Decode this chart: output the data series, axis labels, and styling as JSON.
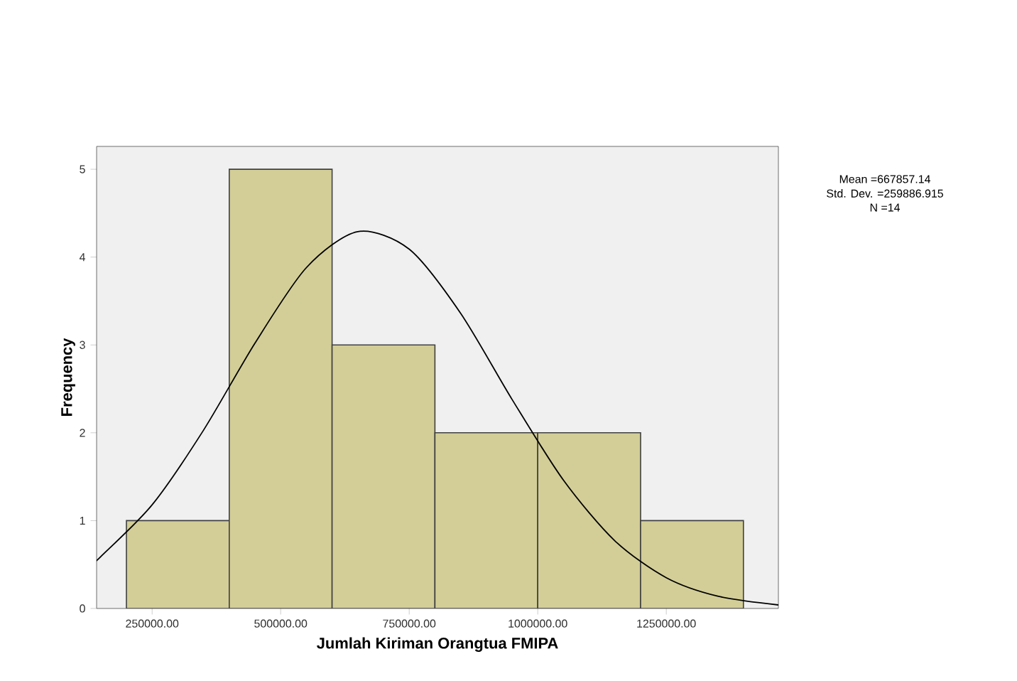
{
  "chart_data": {
    "type": "histogram",
    "xlabel": "Jumlah Kiriman Orangtua FMIPA",
    "ylabel": "Frequency",
    "bins": [
      200000,
      400000,
      600000,
      800000,
      1000000,
      1200000,
      1400000
    ],
    "values": [
      1,
      5,
      3,
      2,
      2,
      1
    ],
    "color": "#d3ce97",
    "series": [
      {
        "type": "line",
        "color": "#000000",
        "x": [
          142000,
          150000,
          250000,
          350000,
          450000,
          550000,
          650000,
          750000,
          850000,
          950000,
          1050000,
          1150000,
          1250000,
          1350000,
          1468000
        ],
        "values": [
          0.55,
          0.59,
          1.18,
          2.03,
          3.02,
          3.88,
          4.29,
          4.09,
          3.36,
          2.38,
          1.46,
          0.77,
          0.35,
          0.14,
          0.04
        ]
      }
    ],
    "xlim": [
      142000,
      1468000
    ],
    "ylim": [
      0,
      5.26
    ],
    "xticks": [
      {
        "value": 250000,
        "label": "250000.00"
      },
      {
        "value": 500000,
        "label": "500000.00"
      },
      {
        "value": 750000,
        "label": "750000.00"
      },
      {
        "value": 1000000,
        "label": "1000000.00"
      },
      {
        "value": 1250000,
        "label": "1250000.00"
      }
    ],
    "yticks": [
      0,
      1,
      2,
      3,
      4,
      5
    ],
    "grid": false,
    "annotations": [
      "Mean =667857.14",
      "Std. Dev. =259886.915",
      "N =14"
    ]
  }
}
